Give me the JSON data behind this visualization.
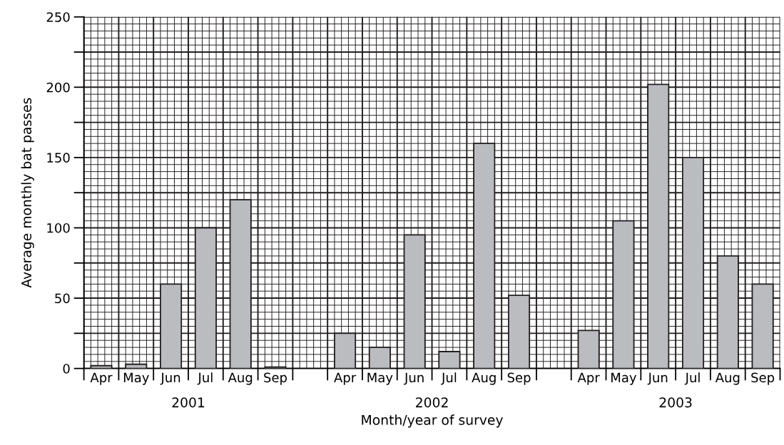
{
  "chart_data": {
    "type": "bar",
    "xlabel": "Month/year of survey",
    "ylabel": "Average monthly bat passes",
    "categories": [
      "Apr",
      "May",
      "Jun",
      "Jul",
      "Aug",
      "Sep",
      null,
      "Apr",
      "May",
      "Jun",
      "Jul",
      "Aug",
      "Sep",
      null,
      "Apr",
      "May",
      "Jun",
      "Jul",
      "Aug",
      "Sep"
    ],
    "values": [
      2,
      3,
      60,
      100,
      120,
      1,
      null,
      25,
      15,
      95,
      12,
      160,
      52,
      null,
      27,
      105,
      202,
      150,
      80,
      60
    ],
    "color": "#bbbcc0",
    "ylim": [
      0,
      250
    ],
    "yticks": [
      0,
      {
        "value": 25,
        "label": null
      },
      50,
      {
        "value": 75,
        "label": null
      },
      100,
      {
        "value": 125,
        "label": null
      },
      150,
      {
        "value": 175,
        "label": null
      },
      200,
      {
        "value": 225,
        "label": null
      },
      250
    ],
    "grid": true,
    "annotations": [
      "2001",
      "2002",
      "2003"
    ]
  }
}
